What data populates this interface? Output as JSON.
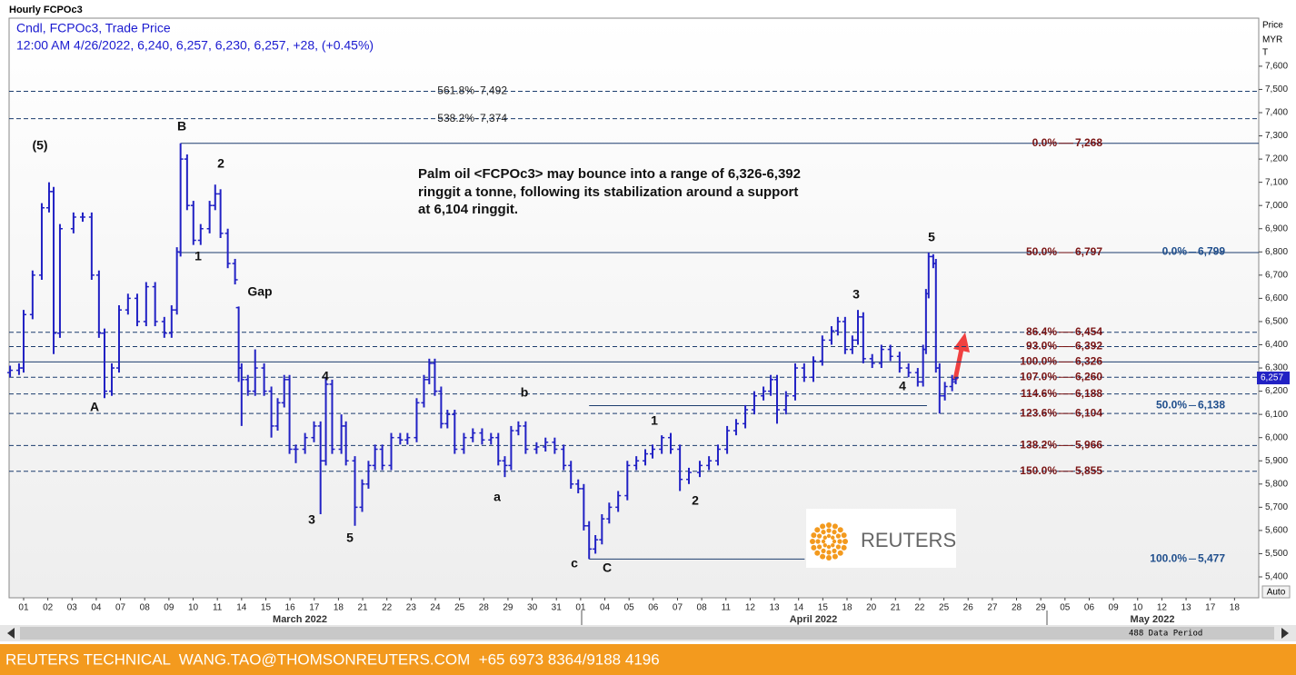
{
  "chart_data": {
    "type": "ohlc",
    "title": "Hourly FCPOc3",
    "subtitle": "Cndl, FCPOc3, Trade Price",
    "info": "12:00 AM 4/26/2022, 6,240, 6,257, 6,230, 6,257, +28, (+0.45%)",
    "axis_header": [
      "Price",
      "MYR",
      "T"
    ],
    "annotation": [
      "Palm oil <FCPOc3> may bounce into a range of 6,326-6,392",
      "ringgit a tonne, following its stabilization around a support",
      "at 6,104 ringgit."
    ],
    "color": "#2121c4",
    "bars": {
      "x": [
        -0.56,
        -0.19,
        0,
        0.37,
        0.75,
        1.05,
        1.24,
        1.5,
        2.06,
        2.44,
        2.81,
        3.11,
        3.34,
        3.64,
        3.94,
        4.31,
        4.69,
        5.06,
        5.43,
        5.81,
        6.11,
        6.33,
        6.48,
        6.75,
        7.01,
        7.31,
        7.68,
        7.91,
        8.13,
        8.43,
        8.73,
        8.88,
        9,
        9.26,
        9.56,
        9.93,
        10.23,
        10.49,
        10.76,
        10.98,
        11.24,
        11.62,
        11.99,
        12.26,
        12.48,
        12.74,
        13.12,
        13.31,
        13.68,
        13.98,
        14.24,
        14.51,
        14.81,
        15.18,
        15.55,
        15.85,
        16.23,
        16.53,
        16.75,
        16.98,
        17.24,
        17.5,
        17.8,
        18.18,
        18.55,
        18.93,
        19.3,
        19.6,
        19.87,
        20.13,
        20.43,
        20.73,
        21.18,
        21.55,
        21.93,
        22.3,
        22.6,
        22.9,
        23.13,
        23.35,
        23.61,
        23.88,
        24.18,
        24.55,
        24.93,
        25.3,
        25.67,
        25.97,
        26.35,
        26.72,
        27.1,
        27.47,
        27.92,
        28.3,
        28.67,
        29.05,
        29.42,
        29.8,
        30.17,
        30.55,
        30.85,
        31.11,
        31.48,
        31.86,
        32.23,
        32.61,
        32.98,
        33.36,
        33.62,
        33.92,
        34.22,
        34.45,
        34.67,
        35.04,
        35.42,
        35.79,
        36.17,
        36.54,
        36.92,
        37.14,
        37.26,
        37.37,
        37.56,
        37.67,
        37.82,
        38.04,
        38.34,
        38.49
      ],
      "open": [
        6280,
        6290,
        6300,
        6530,
        6700,
        6990,
        7060,
        6450,
        6900,
        6950,
        6950,
        6700,
        6450,
        6200,
        6300,
        6550,
        6600,
        6500,
        6650,
        6500,
        6450,
        6550,
        6800,
        7200,
        7000,
        6850,
        6900,
        7000,
        7050,
        6880,
        6750,
        6560,
        6300,
        6250,
        6200,
        6300,
        6200,
        6050,
        6150,
        6250,
        5950,
        5950,
        6000,
        6050,
        5900,
        6230,
        5950,
        6050,
        5900,
        5700,
        5800,
        5880,
        5950,
        5880,
        6000,
        5990,
        6000,
        6150,
        6250,
        6320,
        6200,
        6060,
        6100,
        5950,
        6000,
        6020,
        5990,
        6000,
        5900,
        5880,
        6030,
        6050,
        5950,
        5960,
        5980,
        5950,
        5880,
        5800,
        5780,
        5620,
        5520,
        5560,
        5650,
        5700,
        5750,
        5880,
        5900,
        5930,
        5950,
        6000,
        5950,
        5820,
        5850,
        5880,
        5900,
        5950,
        6030,
        6060,
        6120,
        6180,
        6200,
        6250,
        6120,
        6180,
        6300,
        6260,
        6330,
        6420,
        6460,
        6500,
        6380,
        6420,
        6520,
        6340,
        6320,
        6380,
        6350,
        6300,
        6280,
        6240,
        6380,
        6620,
        6780,
        6750,
        6300,
        6180,
        6220,
        6240
      ],
      "high": [
        6310,
        6320,
        6550,
        6720,
        7010,
        7100,
        7080,
        6920,
        6970,
        6970,
        6970,
        6720,
        6470,
        6320,
        6570,
        6620,
        6620,
        6670,
        6670,
        6520,
        6570,
        6820,
        7268,
        7220,
        7020,
        6920,
        7020,
        7090,
        7070,
        6900,
        6770,
        6565,
        6320,
        6270,
        6380,
        6320,
        6220,
        6170,
        6270,
        6270,
        5970,
        6020,
        6070,
        6070,
        6260,
        6250,
        6100,
        6070,
        5920,
        5820,
        5900,
        5970,
        5970,
        6020,
        6020,
        6020,
        6170,
        6270,
        6340,
        6340,
        6220,
        6120,
        6120,
        6020,
        6040,
        6040,
        6020,
        6020,
        5920,
        6050,
        6070,
        6070,
        5980,
        6000,
        6000,
        5970,
        5900,
        5820,
        5800,
        5640,
        5580,
        5670,
        5720,
        5770,
        5900,
        5920,
        5950,
        5970,
        6010,
        6020,
        5970,
        5870,
        5900,
        5920,
        5970,
        6050,
        6080,
        6140,
        6200,
        6220,
        6270,
        6270,
        6200,
        6320,
        6320,
        6350,
        6440,
        6480,
        6520,
        6520,
        6440,
        6550,
        6540,
        6360,
        6400,
        6400,
        6370,
        6320,
        6300,
        6400,
        6640,
        6797,
        6790,
        6770,
        6320,
        6240,
        6270,
        6257
      ],
      "low": [
        6260,
        6270,
        6280,
        6510,
        6680,
        6970,
        6360,
        6430,
        6880,
        6930,
        6680,
        6430,
        6170,
        6180,
        6280,
        6530,
        6480,
        6480,
        6480,
        6430,
        6430,
        6530,
        6780,
        6980,
        6830,
        6830,
        6880,
        6980,
        6860,
        6730,
        6660,
        6240,
        6050,
        6180,
        6180,
        6180,
        6000,
        6030,
        6130,
        5930,
        5890,
        5930,
        5980,
        5670,
        5880,
        5930,
        5930,
        5880,
        5620,
        5680,
        5780,
        5860,
        5860,
        5860,
        5970,
        5970,
        5980,
        6130,
        6230,
        6180,
        6040,
        6040,
        5930,
        5930,
        5980,
        5970,
        5970,
        5880,
        5830,
        5860,
        6010,
        5930,
        5930,
        5940,
        5930,
        5860,
        5780,
        5760,
        5600,
        5477,
        5500,
        5540,
        5630,
        5680,
        5730,
        5860,
        5880,
        5910,
        5930,
        5930,
        5770,
        5800,
        5830,
        5860,
        5880,
        5930,
        6010,
        6040,
        6100,
        6160,
        6180,
        6060,
        6100,
        6160,
        6240,
        6240,
        6310,
        6400,
        6440,
        6360,
        6360,
        6400,
        6320,
        6300,
        6300,
        6330,
        6280,
        6260,
        6220,
        6220,
        6360,
        6600,
        6730,
        6280,
        6104,
        6160,
        6200,
        6230
      ],
      "close": [
        6290,
        6300,
        6530,
        6700,
        6990,
        7060,
        6450,
        6900,
        6950,
        6950,
        6700,
        6450,
        6200,
        6300,
        6550,
        6600,
        6500,
        6650,
        6500,
        6450,
        6550,
        6800,
        7200,
        7000,
        6850,
        6900,
        7000,
        7050,
        6880,
        6750,
        6680,
        6300,
        6250,
        6200,
        6300,
        6200,
        6050,
        6150,
        6250,
        5950,
        5950,
        6000,
        6050,
        5900,
        6230,
        5950,
        6050,
        5900,
        5700,
        5800,
        5880,
        5950,
        5880,
        6000,
        5990,
        6000,
        6150,
        6250,
        6320,
        6200,
        6060,
        6100,
        5950,
        6000,
        6020,
        5990,
        6000,
        5900,
        5880,
        6030,
        6050,
        5950,
        5960,
        5980,
        5950,
        5880,
        5800,
        5780,
        5620,
        5520,
        5560,
        5650,
        5700,
        5750,
        5880,
        5900,
        5930,
        5950,
        6000,
        5950,
        5820,
        5850,
        5880,
        5900,
        5950,
        6030,
        6060,
        6120,
        6180,
        6200,
        6250,
        6120,
        6180,
        6300,
        6260,
        6330,
        6420,
        6460,
        6500,
        6380,
        6420,
        6520,
        6340,
        6320,
        6380,
        6350,
        6300,
        6280,
        6240,
        6380,
        6620,
        6780,
        6750,
        6300,
        6180,
        6220,
        6250,
        6257
      ]
    },
    "last_price_label": "6,257",
    "xlim": [
      -0.6,
      51
    ],
    "xticks": [
      {
        "value": 0,
        "label": "01"
      },
      {
        "value": 1,
        "label": "02"
      },
      {
        "value": 2,
        "label": "03"
      },
      {
        "value": 3,
        "label": "04"
      },
      {
        "value": 4,
        "label": "07"
      },
      {
        "value": 5,
        "label": "08"
      },
      {
        "value": 6,
        "label": "09"
      },
      {
        "value": 7,
        "label": "10"
      },
      {
        "value": 8,
        "label": "11"
      },
      {
        "value": 9,
        "label": "14"
      },
      {
        "value": 10,
        "label": "15"
      },
      {
        "value": 11,
        "label": "16"
      },
      {
        "value": 12,
        "label": "17"
      },
      {
        "value": 13,
        "label": "18"
      },
      {
        "value": 14,
        "label": "21"
      },
      {
        "value": 15,
        "label": "22"
      },
      {
        "value": 16,
        "label": "23"
      },
      {
        "value": 17,
        "label": "24"
      },
      {
        "value": 18,
        "label": "25"
      },
      {
        "value": 19,
        "label": "28"
      },
      {
        "value": 20,
        "label": "29"
      },
      {
        "value": 21,
        "label": "30"
      },
      {
        "value": 22,
        "label": "31"
      },
      {
        "value": 23,
        "label": "01"
      },
      {
        "value": 24,
        "label": "04"
      },
      {
        "value": 25,
        "label": "05"
      },
      {
        "value": 26,
        "label": "06"
      },
      {
        "value": 27,
        "label": "07"
      },
      {
        "value": 28,
        "label": "08"
      },
      {
        "value": 29,
        "label": "11"
      },
      {
        "value": 30,
        "label": "12"
      },
      {
        "value": 31,
        "label": "13"
      },
      {
        "value": 32,
        "label": "14"
      },
      {
        "value": 33,
        "label": "15"
      },
      {
        "value": 34,
        "label": "18"
      },
      {
        "value": 35,
        "label": "20"
      },
      {
        "value": 36,
        "label": "21"
      },
      {
        "value": 37,
        "label": "22"
      },
      {
        "value": 38,
        "label": "25"
      },
      {
        "value": 39,
        "label": "26"
      },
      {
        "value": 40,
        "label": "27"
      },
      {
        "value": 41,
        "label": "28"
      },
      {
        "value": 42,
        "label": "29"
      },
      {
        "value": 43,
        "label": "05"
      },
      {
        "value": 44,
        "label": "06"
      },
      {
        "value": 45,
        "label": "09"
      },
      {
        "value": 46,
        "label": "10"
      },
      {
        "value": 47,
        "label": "12"
      },
      {
        "value": 48,
        "label": "13"
      },
      {
        "value": 49,
        "label": "17"
      },
      {
        "value": 50,
        "label": "18"
      }
    ],
    "months": [
      "March 2022",
      "April 2022",
      "May 2022"
    ],
    "ylim": [
      5310,
      7807
    ],
    "yticks": [
      {
        "value": 5400,
        "label": "5,400"
      },
      {
        "value": 5500,
        "label": "5,500"
      },
      {
        "value": 5600,
        "label": "5,600"
      },
      {
        "value": 5700,
        "label": "5,700"
      },
      {
        "value": 5800,
        "label": "5,800"
      },
      {
        "value": 5900,
        "label": "5,900"
      },
      {
        "value": 6000,
        "label": "6,000"
      },
      {
        "value": 6100,
        "label": "6,100"
      },
      {
        "value": 6200,
        "label": "6,200"
      },
      {
        "value": 6300,
        "label": "6,300"
      },
      {
        "value": 6400,
        "label": "6,400"
      },
      {
        "value": 6500,
        "label": "6,500"
      },
      {
        "value": 6600,
        "label": "6,600"
      },
      {
        "value": 6700,
        "label": "6,700"
      },
      {
        "value": 6800,
        "label": "6,800"
      },
      {
        "value": 6900,
        "label": "6,900"
      },
      {
        "value": 7000,
        "label": "7,000"
      },
      {
        "value": 7100,
        "label": "7,100"
      },
      {
        "value": 7200,
        "label": "7,200"
      },
      {
        "value": 7300,
        "label": "7,300"
      },
      {
        "value": 7400,
        "label": "7,400"
      },
      {
        "value": 7500,
        "label": "7,500"
      },
      {
        "value": 7600,
        "label": "7,600"
      }
    ],
    "fib_levels": [
      {
        "ratio": "561.8%",
        "value": 7492,
        "label": "7,492",
        "group": "black",
        "style": "dashed"
      },
      {
        "ratio": "538.2%",
        "value": 7374,
        "label": "7,374",
        "group": "black",
        "style": "dashed"
      },
      {
        "ratio": "0.0%",
        "value": 7268,
        "label": "7,268",
        "group": "red",
        "style": "solid",
        "from": 6.48
      },
      {
        "ratio": "50.0%",
        "value": 6797,
        "label": "6,797",
        "group": "red",
        "style": "solid",
        "from": 6.4
      },
      {
        "ratio": "86.4%",
        "value": 6454,
        "label": "6,454",
        "group": "red",
        "style": "dashed"
      },
      {
        "ratio": "93.0%",
        "value": 6392,
        "label": "6,392",
        "group": "red",
        "style": "dashed"
      },
      {
        "ratio": "100.0%",
        "value": 6326,
        "label": "6,326",
        "group": "red",
        "style": "solid"
      },
      {
        "ratio": "107.0%",
        "value": 6260,
        "label": "6,260",
        "group": "red",
        "style": "dashed"
      },
      {
        "ratio": "114.6%",
        "value": 6188,
        "label": "6,188",
        "group": "red",
        "style": "dashed"
      },
      {
        "ratio": "123.6%",
        "value": 6104,
        "label": "6,104",
        "group": "red",
        "style": "dashed"
      },
      {
        "ratio": "138.2%",
        "value": 5966,
        "label": "5,966",
        "group": "red",
        "style": "dashed"
      },
      {
        "ratio": "150.0%",
        "value": 5855,
        "label": "5,855",
        "group": "red",
        "style": "dashed"
      },
      {
        "ratio": "0.0%",
        "value": 6799,
        "label": "6,799",
        "group": "blue"
      },
      {
        "ratio": "50.0%",
        "value": 6138,
        "label": "6,138",
        "group": "blue",
        "style": "solid",
        "from": 23.35,
        "to": 37.3
      },
      {
        "ratio": "100.0%",
        "value": 5477,
        "label": "5,477",
        "group": "blue",
        "style": "solid",
        "from": 23.35,
        "to": 32.25
      }
    ],
    "group_colors": {
      "black": "#222222",
      "red": "#7a1414",
      "blue": "#1f4e8c"
    },
    "line_color": "#1c3d6e",
    "waves": [
      "(5)",
      "B",
      "2",
      "1",
      "Gap",
      "A",
      "4",
      "3",
      "5",
      "b",
      "a",
      "c",
      "C",
      "1",
      "2",
      "3",
      "5",
      "4"
    ],
    "logo": "REUTERS",
    "scroll_label": "488 Data Period",
    "auto_button": "Auto",
    "footer": "REUTERS TECHNICAL  WANG.TAO@THOMSONREUTERS.COM  +65 6973 8364/9188 4196"
  }
}
